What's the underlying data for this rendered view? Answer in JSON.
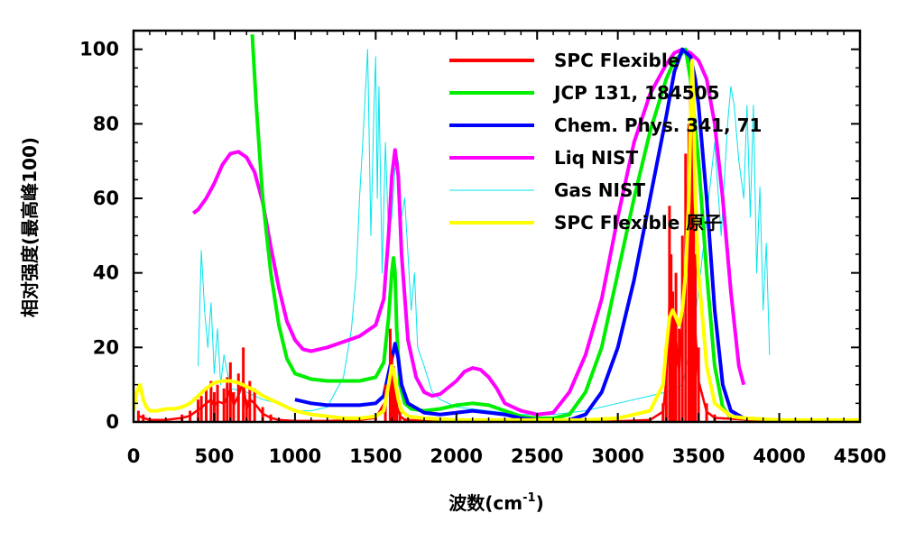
{
  "chart_data": {
    "type": "line",
    "xlabel": "波数(cm",
    "xlabel_sup": "-1",
    "xlabel_close": ")",
    "ylabel": "相对强度(最高峰100)",
    "xlim": [
      0,
      4500
    ],
    "ylim": [
      0,
      105
    ],
    "x_ticks": [
      "0",
      "500",
      "1000",
      "1500",
      "2000",
      "2500",
      "3000",
      "3500",
      "4000",
      "4500"
    ],
    "y_ticks": [
      "0",
      "20",
      "40",
      "60",
      "80",
      "100"
    ],
    "legend_position": "top-right",
    "grid": false,
    "series": [
      {
        "name": "SPC Flexible",
        "color": "#ff0000",
        "style": "bars",
        "x": [
          30,
          60,
          100,
          200,
          300,
          350,
          400,
          420,
          450,
          480,
          500,
          520,
          560,
          580,
          600,
          620,
          650,
          680,
          700,
          720,
          750,
          800,
          850,
          900,
          1000,
          1200,
          1400,
          1500,
          1560,
          1590,
          1600,
          1610,
          1620,
          1630,
          1650,
          1680,
          1700,
          1800,
          2000,
          2500,
          3000,
          3200,
          3280,
          3300,
          3320,
          3330,
          3340,
          3350,
          3360,
          3380,
          3400,
          3420,
          3440,
          3450,
          3460,
          3470,
          3480,
          3500,
          3550,
          3600,
          4000
        ],
        "values": [
          3,
          2,
          1,
          1,
          2,
          3,
          6,
          7,
          9,
          11,
          8,
          10,
          9,
          12,
          16,
          8,
          13,
          20,
          6,
          11,
          9,
          4,
          2,
          1,
          0.5,
          0.5,
          1,
          2,
          10,
          25,
          18,
          15,
          12,
          8,
          3,
          1,
          1,
          0.5,
          0.3,
          0.2,
          0.3,
          1,
          5,
          20,
          58,
          45,
          35,
          30,
          40,
          25,
          50,
          72,
          80,
          90,
          85,
          60,
          45,
          20,
          5,
          2,
          0.3
        ]
      },
      {
        "name": "JCP 131, 184505",
        "color": "#00ee00",
        "x": [
          735,
          760,
          800,
          850,
          900,
          950,
          1000,
          1100,
          1200,
          1300,
          1400,
          1500,
          1550,
          1580,
          1600,
          1610,
          1620,
          1630,
          1650,
          1680,
          1720,
          1800,
          1900,
          2000,
          2100,
          2200,
          2300,
          2400,
          2500,
          2600,
          2700,
          2800,
          2900,
          3000,
          3100,
          3200,
          3300,
          3350,
          3400,
          3420,
          3450,
          3500,
          3550,
          3600,
          3650,
          3700
        ],
        "values": [
          104,
          85,
          60,
          40,
          26,
          17,
          13,
          11.5,
          11,
          11,
          11,
          12,
          16,
          28,
          40,
          44,
          40,
          25,
          10,
          5,
          3.5,
          3,
          3.5,
          4.5,
          5,
          4.5,
          3,
          1.5,
          1,
          1,
          2,
          8,
          20,
          40,
          60,
          78,
          92,
          97,
          99,
          100,
          92,
          70,
          40,
          15,
          4,
          1
        ]
      },
      {
        "name": "Chem. Phys. 341, 71",
        "color": "#0000ff",
        "x": [
          1000,
          1100,
          1200,
          1300,
          1400,
          1500,
          1550,
          1580,
          1600,
          1620,
          1640,
          1660,
          1700,
          1800,
          1900,
          2000,
          2100,
          2200,
          2300,
          2400,
          2500,
          2600,
          2700,
          2800,
          2900,
          3000,
          3100,
          3200,
          3300,
          3350,
          3400,
          3450,
          3480,
          3500,
          3550,
          3600,
          3650,
          3700,
          3800
        ],
        "values": [
          6,
          5,
          4.5,
          4.5,
          4.5,
          5,
          7,
          13,
          17,
          21,
          17,
          10,
          5,
          2.5,
          2,
          2.5,
          3,
          2.5,
          2,
          1,
          0.5,
          0.3,
          0.5,
          2,
          8,
          20,
          38,
          60,
          82,
          94,
          100,
          98,
          92,
          85,
          60,
          30,
          10,
          3,
          0.5
        ]
      },
      {
        "name": "Liq NIST",
        "color": "#ff00ff",
        "x": [
          370,
          400,
          450,
          500,
          550,
          600,
          650,
          700,
          750,
          800,
          850,
          900,
          950,
          1000,
          1050,
          1100,
          1200,
          1300,
          1400,
          1500,
          1550,
          1580,
          1600,
          1620,
          1640,
          1660,
          1700,
          1750,
          1800,
          1850,
          1900,
          2000,
          2050,
          2100,
          2150,
          2200,
          2250,
          2300,
          2350,
          2400,
          2500,
          2600,
          2700,
          2800,
          2900,
          3000,
          3100,
          3200,
          3300,
          3350,
          3400,
          3450,
          3500,
          3550,
          3600,
          3650,
          3700,
          3750,
          3780
        ],
        "values": [
          56,
          57,
          60,
          64,
          69,
          72,
          72.5,
          71,
          67,
          59,
          47,
          36,
          27,
          22,
          19.5,
          19,
          20,
          21.5,
          23,
          26,
          33,
          50,
          66,
          73,
          66,
          45,
          22,
          12,
          8,
          7,
          7.5,
          11,
          13.5,
          14.5,
          14,
          12,
          9,
          5,
          4,
          3,
          2,
          2.5,
          8,
          18,
          33,
          55,
          75,
          88,
          96,
          99,
          100,
          99,
          97,
          92,
          80,
          60,
          35,
          15,
          10
        ]
      },
      {
        "name": "Gas NIST",
        "color": "#00e5ee",
        "style": "noisy",
        "x": [
          400,
          420,
          440,
          460,
          480,
          500,
          520,
          540,
          560,
          600,
          700,
          800,
          900,
          1000,
          1100,
          1200,
          1250,
          1300,
          1350,
          1380,
          1400,
          1420,
          1450,
          1470,
          1490,
          1500,
          1510,
          1520,
          1540,
          1560,
          1580,
          1600,
          1620,
          1640,
          1660,
          1680,
          1700,
          1720,
          1740,
          1760,
          1800,
          1850,
          1900,
          2000,
          2200,
          2400,
          2600,
          2800,
          3000,
          3100,
          3200,
          3300,
          3400,
          3450,
          3500,
          3550,
          3600,
          3640,
          3680,
          3700,
          3720,
          3750,
          3780,
          3800,
          3820,
          3840,
          3860,
          3880,
          3900,
          3920,
          3940
        ],
        "values": [
          15,
          46,
          30,
          20,
          32,
          13,
          25,
          10,
          18,
          9,
          8,
          6,
          5,
          3,
          3,
          4,
          8,
          12,
          25,
          40,
          60,
          75,
          100,
          50,
          85,
          98,
          60,
          90,
          40,
          75,
          50,
          55,
          68,
          70,
          55,
          60,
          45,
          30,
          40,
          20,
          15,
          8,
          6,
          4,
          3,
          2,
          2,
          3,
          5,
          6,
          7,
          8,
          10,
          20,
          35,
          55,
          75,
          50,
          80,
          90,
          85,
          70,
          60,
          85,
          55,
          85,
          40,
          63,
          30,
          48,
          18
        ]
      },
      {
        "name": "SPC Flexible 原子",
        "color": "#ffff00",
        "x": [
          0,
          20,
          40,
          60,
          80,
          100,
          150,
          200,
          250,
          300,
          350,
          400,
          450,
          500,
          550,
          600,
          650,
          700,
          750,
          800,
          850,
          900,
          950,
          1000,
          1100,
          1200,
          1300,
          1400,
          1500,
          1550,
          1580,
          1600,
          1610,
          1620,
          1640,
          1660,
          1700,
          1800,
          2000,
          2200,
          2500,
          2800,
          3000,
          3200,
          3280,
          3300,
          3320,
          3340,
          3360,
          3380,
          3400,
          3420,
          3440,
          3450,
          3460,
          3470,
          3480,
          3500,
          3550,
          3600,
          3700,
          3800,
          4000,
          4500
        ],
        "values": [
          3,
          8,
          10,
          6,
          4,
          3,
          3,
          3.5,
          3.5,
          4,
          5,
          7,
          9,
          10.5,
          11,
          11,
          10.5,
          9.5,
          8.5,
          7,
          6,
          5,
          4,
          3,
          2,
          1.5,
          1,
          1,
          1.5,
          3,
          10,
          15,
          14,
          11,
          6,
          3,
          1.5,
          1,
          0.5,
          0.5,
          0.5,
          0.5,
          1,
          3,
          10,
          20,
          28,
          30,
          28,
          26,
          30,
          40,
          60,
          80,
          97,
          85,
          60,
          40,
          15,
          5,
          1.5,
          1,
          0.5,
          0.5
        ]
      }
    ]
  }
}
